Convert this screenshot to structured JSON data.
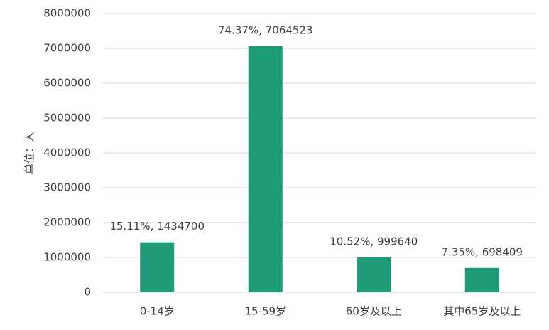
{
  "chart_data": {
    "type": "bar",
    "y_label": "单位：人",
    "categories": [
      "0-14岁",
      "15-59岁",
      "60岁及以上",
      "其中65岁及以上"
    ],
    "values": [
      1434700,
      7064523,
      999640,
      698409
    ],
    "value_labels": [
      "15.11%, 1434700",
      "74.37%, 7064523",
      "10.52%, 999640",
      "7.35%, 698409"
    ],
    "color": "#1f9c78",
    "ylim": [
      0,
      8000000
    ],
    "yticks": [
      0,
      1000000,
      2000000,
      3000000,
      4000000,
      5000000,
      6000000,
      7000000,
      8000000
    ],
    "grid": true
  }
}
